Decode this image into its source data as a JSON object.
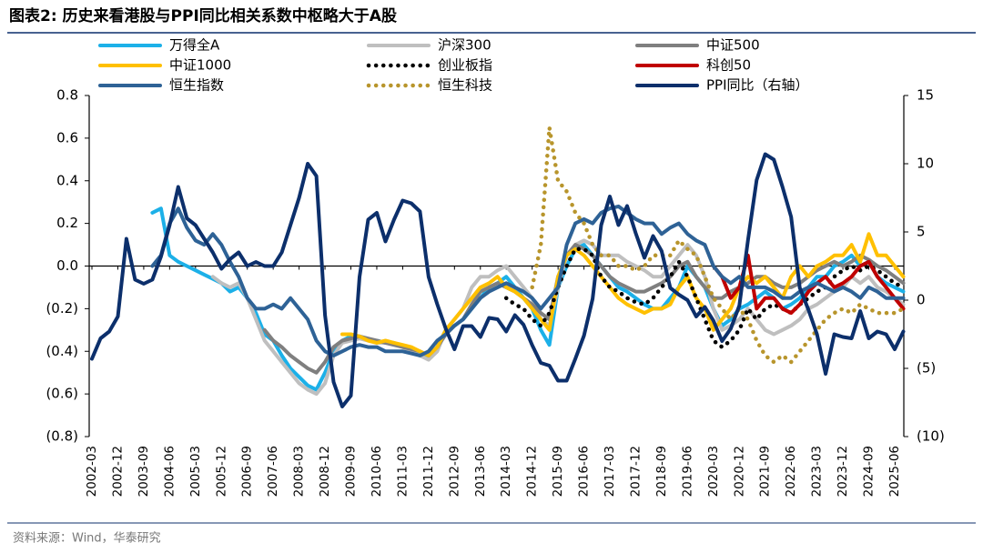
{
  "chart_data": {
    "type": "line",
    "title": "图表2:  历史来看港股与PPI同比相关系数中枢略大于A股",
    "source": "资料来源：Wind，华泰研究",
    "categories": [
      "2002-03",
      null,
      null,
      "2002-12",
      null,
      null,
      "2003-09",
      null,
      null,
      "2004-06",
      null,
      null,
      "2005-03",
      null,
      null,
      "2005-12",
      null,
      null,
      "2006-09",
      null,
      null,
      "2007-06",
      null,
      null,
      "2008-03",
      null,
      null,
      "2008-12",
      null,
      null,
      "2009-09",
      null,
      null,
      "2010-06",
      null,
      null,
      "2011-03",
      null,
      null,
      "2011-12",
      null,
      null,
      "2012-09",
      null,
      null,
      "2013-06",
      null,
      null,
      "2014-03",
      null,
      null,
      "2014-12",
      null,
      null,
      "2015-09",
      null,
      null,
      "2016-06",
      null,
      null,
      "2017-03",
      null,
      null,
      "2017-12",
      null,
      null,
      "2018-09",
      null,
      null,
      "2019-06",
      null,
      null,
      "2020-03",
      null,
      null,
      "2020-12",
      null,
      null,
      "2021-09",
      null,
      null,
      "2022-06",
      null,
      null,
      "2023-03",
      null,
      null,
      "2023-12",
      null,
      null,
      "2024-09",
      null,
      null,
      "2025-06",
      null
    ],
    "ylim": [
      -0.8,
      0.8
    ],
    "yticks": [
      0.8,
      0.6,
      0.4,
      0.2,
      {
        "value": 0,
        "label": "0.0"
      },
      {
        "value": -0.2,
        "label": "(0.2)"
      },
      {
        "value": -0.4,
        "label": "(0.4)"
      },
      {
        "value": -0.6,
        "label": "(0.6)"
      },
      {
        "value": -0.8,
        "label": "(0.8)"
      }
    ],
    "y2lim": [
      -10,
      15
    ],
    "y2ticks": [
      15,
      10,
      5,
      0,
      {
        "value": -5,
        "label": "(5)"
      },
      {
        "value": -10,
        "label": "(10)"
      }
    ],
    "series": [
      {
        "name": "万得全A",
        "color": "#1cb0e8",
        "style": "solid",
        "values": [
          null,
          null,
          null,
          null,
          null,
          null,
          null,
          0.25,
          0.27,
          0.05,
          0.02,
          0.0,
          -0.02,
          -0.04,
          -0.06,
          -0.08,
          -0.12,
          -0.1,
          -0.15,
          -0.22,
          -0.32,
          -0.35,
          -0.42,
          -0.48,
          -0.52,
          -0.56,
          -0.58,
          -0.5,
          -0.4,
          -0.35,
          -0.33,
          -0.33,
          -0.35,
          -0.35,
          -0.36,
          -0.36,
          -0.38,
          -0.39,
          -0.42,
          -0.43,
          -0.38,
          -0.3,
          -0.28,
          -0.25,
          -0.2,
          -0.15,
          -0.1,
          -0.08,
          -0.05,
          -0.1,
          -0.15,
          -0.2,
          -0.3,
          -0.37,
          -0.1,
          0.0,
          0.08,
          0.1,
          0.05,
          0.0,
          -0.05,
          -0.1,
          -0.12,
          -0.15,
          -0.18,
          -0.2,
          -0.2,
          -0.15,
          -0.1,
          0.0,
          -0.05,
          -0.1,
          -0.2,
          -0.28,
          -0.25,
          -0.2,
          -0.18,
          -0.15,
          -0.12,
          -0.15,
          -0.2,
          -0.18,
          -0.15,
          -0.1,
          -0.05,
          -0.05,
          0.0,
          0.02,
          0.05,
          0.0,
          0.02,
          -0.05,
          -0.08,
          -0.1,
          -0.12
        ]
      },
      {
        "name": "沪深300",
        "color": "#bfbfbf",
        "style": "solid",
        "values": [
          null,
          null,
          null,
          null,
          null,
          null,
          null,
          null,
          null,
          null,
          null,
          null,
          null,
          null,
          -0.05,
          -0.08,
          -0.1,
          -0.08,
          -0.15,
          -0.25,
          -0.35,
          -0.4,
          -0.45,
          -0.5,
          -0.55,
          -0.58,
          -0.6,
          -0.55,
          -0.42,
          -0.36,
          -0.35,
          -0.34,
          -0.35,
          -0.36,
          -0.36,
          -0.37,
          -0.38,
          -0.4,
          -0.42,
          -0.44,
          -0.4,
          -0.3,
          -0.25,
          -0.2,
          -0.1,
          -0.05,
          -0.05,
          -0.02,
          0.0,
          -0.05,
          -0.1,
          -0.15,
          -0.25,
          -0.28,
          -0.1,
          0.05,
          0.1,
          0.12,
          0.1,
          0.05,
          0.05,
          0.05,
          0.02,
          0.0,
          -0.02,
          -0.05,
          -0.05,
          0.0,
          0.05,
          0.1,
          0.05,
          -0.05,
          -0.2,
          -0.3,
          -0.28,
          -0.25,
          -0.2,
          -0.25,
          -0.3,
          -0.32,
          -0.3,
          -0.28,
          -0.25,
          -0.2,
          -0.18,
          -0.15,
          -0.12,
          -0.1,
          -0.05,
          -0.08,
          -0.05,
          -0.1,
          -0.12,
          -0.15,
          -0.18
        ]
      },
      {
        "name": "中证500",
        "color": "#7f7f7f",
        "style": "solid",
        "values": [
          null,
          null,
          null,
          null,
          null,
          null,
          null,
          null,
          null,
          null,
          null,
          null,
          null,
          null,
          null,
          null,
          null,
          null,
          null,
          null,
          -0.3,
          -0.35,
          -0.38,
          -0.42,
          -0.45,
          -0.48,
          -0.5,
          -0.45,
          -0.38,
          -0.35,
          -0.34,
          -0.33,
          -0.34,
          -0.35,
          -0.36,
          -0.37,
          -0.38,
          -0.39,
          -0.4,
          -0.42,
          -0.38,
          -0.32,
          -0.28,
          -0.25,
          -0.18,
          -0.12,
          -0.1,
          -0.08,
          -0.1,
          -0.12,
          -0.15,
          -0.18,
          -0.22,
          -0.25,
          -0.05,
          0.05,
          0.1,
          0.08,
          0.05,
          0.0,
          -0.05,
          -0.08,
          -0.1,
          -0.12,
          -0.12,
          -0.1,
          -0.08,
          -0.05,
          0.0,
          0.02,
          -0.05,
          -0.1,
          -0.15,
          -0.15,
          -0.12,
          -0.1,
          -0.08,
          -0.05,
          -0.05,
          -0.08,
          -0.1,
          -0.1,
          -0.08,
          -0.05,
          -0.02,
          0.0,
          0.02,
          0.0,
          0.02,
          0.05,
          0.03,
          0.0,
          -0.02,
          -0.05,
          -0.08
        ]
      },
      {
        "name": "中证1000",
        "color": "#ffc000",
        "style": "solid",
        "values": [
          null,
          null,
          null,
          null,
          null,
          null,
          null,
          null,
          null,
          null,
          null,
          null,
          null,
          null,
          null,
          null,
          null,
          null,
          null,
          null,
          null,
          null,
          null,
          null,
          null,
          null,
          null,
          null,
          null,
          -0.32,
          -0.32,
          -0.33,
          -0.35,
          -0.36,
          -0.35,
          -0.36,
          -0.37,
          -0.38,
          -0.4,
          -0.42,
          -0.38,
          -0.3,
          -0.25,
          -0.2,
          -0.15,
          -0.1,
          -0.08,
          -0.05,
          -0.1,
          -0.12,
          -0.15,
          -0.2,
          -0.25,
          -0.3,
          -0.05,
          0.05,
          0.08,
          0.05,
          0.0,
          -0.05,
          -0.1,
          -0.15,
          -0.18,
          -0.2,
          -0.22,
          -0.2,
          -0.2,
          -0.18,
          -0.1,
          -0.05,
          -0.15,
          -0.2,
          -0.3,
          -0.25,
          -0.2,
          -0.1,
          -0.05,
          -0.08,
          -0.05,
          -0.1,
          -0.15,
          -0.05,
          0.0,
          -0.05,
          0.0,
          0.02,
          0.05,
          0.05,
          0.1,
          0.02,
          0.15,
          0.05,
          0.05,
          0.0,
          -0.05
        ]
      },
      {
        "name": "创业板指",
        "color": "#000000",
        "style": "dotted",
        "values": [
          null,
          null,
          null,
          null,
          null,
          null,
          null,
          null,
          null,
          null,
          null,
          null,
          null,
          null,
          null,
          null,
          null,
          null,
          null,
          null,
          null,
          null,
          null,
          null,
          null,
          null,
          null,
          null,
          null,
          null,
          null,
          null,
          null,
          null,
          null,
          null,
          null,
          null,
          null,
          null,
          null,
          null,
          null,
          null,
          null,
          null,
          null,
          null,
          -0.15,
          -0.18,
          -0.2,
          -0.25,
          -0.28,
          -0.22,
          -0.1,
          0.0,
          0.08,
          0.08,
          0.05,
          -0.05,
          -0.1,
          -0.12,
          -0.15,
          -0.17,
          -0.18,
          -0.15,
          -0.1,
          -0.05,
          0.02,
          -0.05,
          -0.15,
          -0.25,
          -0.35,
          -0.38,
          -0.35,
          -0.3,
          -0.2,
          -0.25,
          -0.2,
          -0.18,
          -0.2,
          -0.22,
          -0.18,
          -0.15,
          -0.12,
          -0.1,
          -0.05,
          -0.02,
          0.0,
          -0.02,
          0.0,
          -0.02,
          -0.05,
          -0.08,
          -0.1
        ]
      },
      {
        "name": "科创50",
        "color": "#c00000",
        "style": "solid",
        "values": [
          null,
          null,
          null,
          null,
          null,
          null,
          null,
          null,
          null,
          null,
          null,
          null,
          null,
          null,
          null,
          null,
          null,
          null,
          null,
          null,
          null,
          null,
          null,
          null,
          null,
          null,
          null,
          null,
          null,
          null,
          null,
          null,
          null,
          null,
          null,
          null,
          null,
          null,
          null,
          null,
          null,
          null,
          null,
          null,
          null,
          null,
          null,
          null,
          null,
          null,
          null,
          null,
          null,
          null,
          null,
          null,
          null,
          null,
          null,
          null,
          null,
          null,
          null,
          null,
          null,
          null,
          null,
          null,
          null,
          null,
          null,
          null,
          0.0,
          -0.05,
          -0.15,
          -0.1,
          0.05,
          -0.2,
          -0.15,
          -0.15,
          -0.2,
          -0.22,
          -0.18,
          -0.12,
          -0.08,
          -0.05,
          -0.1,
          -0.08,
          -0.05,
          0.0,
          0.02,
          -0.05,
          -0.1,
          -0.15,
          -0.2
        ]
      },
      {
        "name": "恒生指数",
        "color": "#2e6296",
        "style": "solid",
        "values": [
          null,
          null,
          null,
          null,
          null,
          null,
          null,
          0.0,
          0.05,
          0.2,
          0.27,
          0.18,
          0.12,
          0.1,
          0.15,
          0.1,
          0.02,
          -0.05,
          -0.15,
          -0.2,
          -0.2,
          -0.18,
          -0.2,
          -0.15,
          -0.2,
          -0.25,
          -0.35,
          -0.4,
          -0.42,
          -0.4,
          -0.38,
          -0.37,
          -0.38,
          -0.38,
          -0.4,
          -0.4,
          -0.4,
          -0.41,
          -0.42,
          -0.4,
          -0.35,
          -0.32,
          -0.28,
          -0.25,
          -0.2,
          -0.15,
          -0.12,
          -0.1,
          -0.08,
          -0.1,
          -0.12,
          -0.15,
          -0.2,
          -0.15,
          -0.1,
          0.1,
          0.2,
          0.22,
          0.2,
          0.25,
          0.27,
          0.28,
          0.25,
          0.22,
          0.2,
          0.2,
          0.15,
          0.18,
          0.2,
          0.15,
          0.12,
          0.1,
          0.0,
          -0.05,
          -0.08,
          -0.05,
          -0.1,
          -0.1,
          -0.1,
          -0.12,
          -0.15,
          -0.15,
          -0.12,
          -0.1,
          -0.08,
          -0.1,
          -0.12,
          -0.1,
          -0.12,
          -0.15,
          -0.1,
          -0.12,
          -0.15,
          -0.15,
          -0.15
        ]
      },
      {
        "name": "恒生科技",
        "color": "#b8952c",
        "style": "dotted",
        "values": [
          null,
          null,
          null,
          null,
          null,
          null,
          null,
          null,
          null,
          null,
          null,
          null,
          null,
          null,
          null,
          null,
          null,
          null,
          null,
          null,
          null,
          null,
          null,
          null,
          null,
          null,
          null,
          null,
          null,
          null,
          null,
          null,
          null,
          null,
          null,
          null,
          null,
          null,
          null,
          null,
          null,
          null,
          null,
          null,
          null,
          null,
          null,
          null,
          null,
          null,
          null,
          -0.1,
          0.1,
          0.65,
          0.4,
          0.35,
          0.25,
          0.2,
          0.1,
          0.05,
          0.05,
          0.0,
          0.0,
          -0.02,
          0.0,
          0.05,
          0.05,
          0.05,
          0.12,
          0.08,
          0.05,
          -0.05,
          -0.15,
          -0.2,
          -0.25,
          -0.2,
          -0.25,
          -0.35,
          -0.42,
          -0.45,
          -0.42,
          -0.45,
          -0.4,
          -0.35,
          -0.3,
          -0.25,
          -0.22,
          -0.2,
          -0.22,
          -0.18,
          -0.2,
          -0.22,
          -0.22,
          -0.22,
          -0.2
        ]
      },
      {
        "name": "PPI同比（右轴）",
        "color": "#0c2f6b",
        "style": "solid",
        "axis": "y2",
        "values": [
          -4.3,
          -2.8,
          -2.3,
          -1.2,
          4.5,
          1.5,
          1.2,
          1.5,
          3.2,
          5.5,
          8.3,
          6.0,
          5.5,
          4.5,
          3.5,
          2.3,
          3.0,
          3.5,
          2.5,
          2.8,
          2.5,
          2.5,
          3.5,
          5.5,
          7.5,
          10.0,
          9.1,
          -1.1,
          -6.0,
          -7.8,
          -7.0,
          1.7,
          5.9,
          6.4,
          4.3,
          5.9,
          7.3,
          7.1,
          6.5,
          1.7,
          -0.3,
          -2.1,
          -3.6,
          -1.9,
          -1.9,
          -2.7,
          -1.3,
          -1.4,
          -2.3,
          -1.1,
          -1.8,
          -3.3,
          -4.6,
          -4.8,
          -5.9,
          -5.9,
          -4.3,
          -2.6,
          0.1,
          5.5,
          7.6,
          5.5,
          6.9,
          4.9,
          3.1,
          4.7,
          3.6,
          0.9,
          0.4,
          0.0,
          -1.2,
          -0.5,
          -1.5,
          -3.0,
          -2.1,
          -0.4,
          4.4,
          8.8,
          10.7,
          10.3,
          8.3,
          6.1,
          0.9,
          -0.7,
          -2.5,
          -5.4,
          -2.5,
          -2.7,
          -2.8,
          -0.8,
          -2.8,
          -2.3,
          -2.5,
          -3.6,
          -2.3
        ]
      }
    ]
  }
}
